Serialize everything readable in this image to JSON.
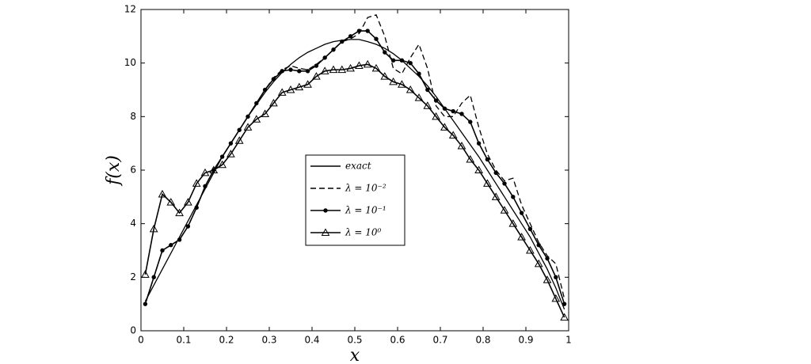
{
  "chart_data": {
    "type": "line",
    "xlabel": "x",
    "ylabel": "f(x)",
    "x": [
      0.01,
      0.03,
      0.05,
      0.07,
      0.09,
      0.11,
      0.13,
      0.15,
      0.17,
      0.19,
      0.21,
      0.23,
      0.25,
      0.27,
      0.29,
      0.31,
      0.33,
      0.35,
      0.37,
      0.39,
      0.41,
      0.43,
      0.45,
      0.47,
      0.49,
      0.51,
      0.53,
      0.55,
      0.57,
      0.59,
      0.61,
      0.63,
      0.65,
      0.67,
      0.69,
      0.71,
      0.73,
      0.75,
      0.77,
      0.79,
      0.81,
      0.83,
      0.85,
      0.87,
      0.89,
      0.91,
      0.93,
      0.95,
      0.97,
      0.99
    ],
    "series": [
      {
        "name": "exact",
        "color": "#000000",
        "style": "solid",
        "marker": "none",
        "values": [
          1.1,
          1.7,
          2.3,
          2.9,
          3.5,
          4.1,
          4.7,
          5.3,
          5.9,
          6.5,
          7.0,
          7.5,
          8.0,
          8.45,
          8.9,
          9.3,
          9.65,
          9.95,
          10.2,
          10.4,
          10.55,
          10.7,
          10.8,
          10.85,
          10.88,
          10.88,
          10.8,
          10.7,
          10.55,
          10.35,
          10.1,
          9.8,
          9.5,
          9.15,
          8.75,
          8.3,
          7.85,
          7.4,
          6.95,
          6.5,
          6.0,
          5.5,
          5.0,
          4.5,
          4.0,
          3.5,
          2.9,
          2.3,
          1.6,
          0.8
        ]
      },
      {
        "name": "λ = 10⁻²",
        "color": "#000000",
        "style": "dashed",
        "marker": "none",
        "values": [
          1.0,
          2.0,
          3.0,
          3.2,
          3.4,
          3.9,
          4.6,
          5.4,
          6.0,
          6.5,
          7.0,
          7.5,
          8.0,
          8.5,
          9.0,
          9.45,
          9.75,
          9.9,
          9.8,
          9.75,
          9.95,
          10.2,
          10.5,
          10.8,
          10.9,
          11.1,
          11.7,
          11.8,
          11.0,
          9.8,
          9.6,
          10.2,
          10.7,
          9.8,
          8.4,
          8.0,
          8.0,
          8.5,
          8.8,
          7.6,
          6.6,
          6.0,
          5.6,
          5.7,
          4.7,
          4.0,
          3.3,
          2.8,
          2.5,
          1.2
        ]
      },
      {
        "name": "λ = 10⁻¹",
        "color": "#000000",
        "style": "solid",
        "marker": "star",
        "values": [
          1.0,
          2.0,
          3.0,
          3.2,
          3.4,
          3.9,
          4.6,
          5.4,
          6.0,
          6.5,
          7.0,
          7.5,
          8.0,
          8.5,
          9.0,
          9.4,
          9.7,
          9.75,
          9.7,
          9.7,
          9.9,
          10.2,
          10.5,
          10.8,
          11.0,
          11.2,
          11.2,
          10.9,
          10.4,
          10.1,
          10.1,
          10.0,
          9.6,
          9.0,
          8.6,
          8.3,
          8.2,
          8.1,
          7.8,
          7.0,
          6.4,
          5.9,
          5.5,
          5.0,
          4.4,
          3.8,
          3.2,
          2.7,
          2.0,
          1.0
        ]
      },
      {
        "name": "λ = 10⁰",
        "color": "#000000",
        "style": "solid",
        "marker": "triangle",
        "values": [
          2.1,
          3.8,
          5.1,
          4.8,
          4.4,
          4.8,
          5.5,
          5.9,
          6.0,
          6.2,
          6.6,
          7.1,
          7.6,
          7.9,
          8.1,
          8.5,
          8.9,
          9.0,
          9.1,
          9.2,
          9.5,
          9.7,
          9.75,
          9.75,
          9.8,
          9.9,
          9.95,
          9.8,
          9.5,
          9.3,
          9.2,
          9.0,
          8.7,
          8.4,
          8.0,
          7.6,
          7.3,
          6.9,
          6.4,
          6.0,
          5.5,
          5.0,
          4.5,
          4.0,
          3.5,
          3.0,
          2.5,
          1.9,
          1.2,
          0.5
        ]
      }
    ],
    "xlim": [
      0,
      1
    ],
    "xticks": [
      0,
      0.1,
      0.2,
      0.3,
      0.4,
      0.5,
      0.6,
      0.7,
      0.8,
      0.9,
      1
    ],
    "ylim": [
      0,
      12
    ],
    "yticks": [
      0,
      2,
      4,
      6,
      8,
      10,
      12
    ],
    "grid": false
  }
}
